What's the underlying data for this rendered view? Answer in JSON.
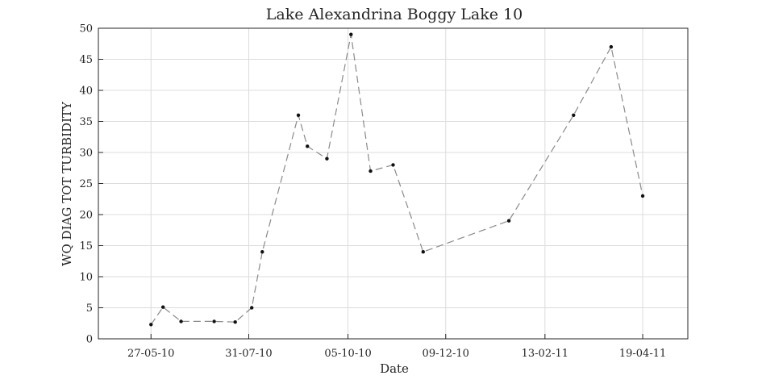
{
  "chart_data": {
    "type": "line",
    "title": "Lake Alexandrina Boggy Lake 10",
    "xlabel": "Date",
    "ylabel": "WQ DIAG TOT TURBIDITY",
    "xlim": [
      "2010-04-22",
      "2011-05-19"
    ],
    "ylim": [
      0,
      50
    ],
    "x_ticks": [
      "2010-05-27",
      "2010-07-31",
      "2010-10-05",
      "2010-12-09",
      "2011-02-13",
      "2011-04-19"
    ],
    "x_tick_labels": [
      "27-05-10",
      "31-07-10",
      "05-10-10",
      "09-12-10",
      "13-02-11",
      "19-04-11"
    ],
    "y_ticks": [
      0,
      5,
      10,
      15,
      20,
      25,
      30,
      35,
      40,
      45,
      50
    ],
    "y_tick_labels": [
      "0",
      "5",
      "10",
      "15",
      "20",
      "25",
      "30",
      "35",
      "40",
      "45",
      "50"
    ],
    "grid": true,
    "series": [
      {
        "color": "#8a8a8a",
        "marker_color": "#111111",
        "line_style": "dashed",
        "x": [
          "2010-05-27",
          "2010-06-04",
          "2010-06-16",
          "2010-07-08",
          "2010-07-22",
          "2010-08-02",
          "2010-08-09",
          "2010-09-02",
          "2010-09-08",
          "2010-09-21",
          "2010-10-07",
          "2010-10-20",
          "2010-11-04",
          "2010-11-24",
          "2011-01-20",
          "2011-03-04",
          "2011-03-29",
          "2011-04-19"
        ],
        "y": [
          2.3,
          5.1,
          2.8,
          2.8,
          2.7,
          5,
          14,
          36,
          31,
          29,
          49,
          27,
          28,
          14,
          19,
          36,
          47,
          23
        ]
      }
    ]
  }
}
